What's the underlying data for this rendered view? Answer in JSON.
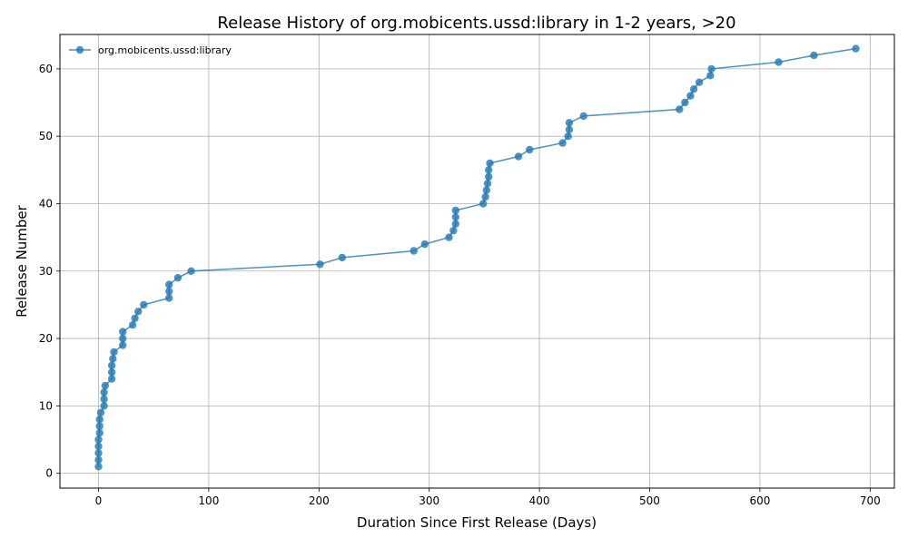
{
  "chart_data": {
    "type": "line",
    "title": "Release History of org.mobicents.ussd:library in 1-2 years, >20",
    "xlabel": "Duration Since First Release (Days)",
    "ylabel": "Release Number",
    "xlim": [
      -35,
      722
    ],
    "ylim": [
      -2.2,
      65.1
    ],
    "xticks": [
      0,
      100,
      200,
      300,
      400,
      500,
      600,
      700
    ],
    "yticks": [
      0,
      10,
      20,
      30,
      40,
      50,
      60
    ],
    "grid": true,
    "legend_position": "top-left",
    "series": [
      {
        "name": "org.mobicents.ussd:library",
        "color": "#1f77b4",
        "marker": "circle",
        "x": [
          0,
          0,
          0,
          0,
          0,
          1,
          1,
          1,
          2,
          5,
          5,
          5,
          6,
          12,
          12,
          12,
          13,
          14,
          22,
          22,
          22,
          31,
          33,
          36,
          41,
          64,
          64,
          64,
          72,
          84,
          201,
          221,
          286,
          296,
          318,
          322,
          324,
          324,
          324,
          349,
          351,
          352,
          353,
          354,
          354,
          355,
          381,
          391,
          421,
          426,
          427,
          427,
          440,
          527,
          532,
          537,
          540,
          545,
          555,
          556,
          617,
          649,
          687
        ],
        "y": [
          1,
          2,
          3,
          4,
          5,
          6,
          7,
          8,
          9,
          10,
          11,
          12,
          13,
          14,
          15,
          16,
          17,
          18,
          19,
          20,
          21,
          22,
          23,
          24,
          25,
          26,
          27,
          28,
          29,
          30,
          31,
          32,
          33,
          34,
          35,
          36,
          37,
          38,
          39,
          40,
          41,
          42,
          43,
          44,
          45,
          46,
          47,
          48,
          49,
          50,
          51,
          52,
          53,
          54,
          55,
          56,
          57,
          58,
          59,
          60,
          61,
          62,
          63
        ]
      }
    ]
  }
}
